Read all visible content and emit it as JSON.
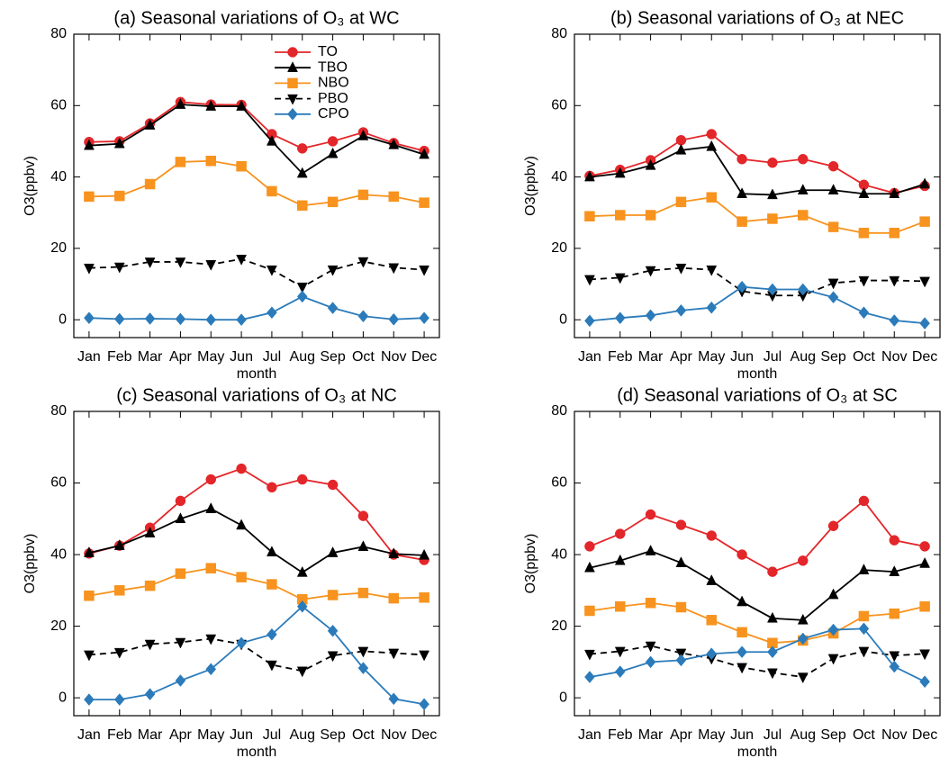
{
  "chart_data": [
    {
      "type": "line",
      "title": "(a) Seasonal variations of O₃ at WC",
      "x_label": "month",
      "y_label": "O3(ppbv)",
      "categories": [
        "Jan",
        "Feb",
        "Mar",
        "Apr",
        "May",
        "Jun",
        "Jul",
        "Aug",
        "Sep",
        "Oct",
        "Nov",
        "Dec"
      ],
      "ylim": [
        -5,
        80
      ],
      "yticks": [
        0,
        20,
        40,
        60,
        80
      ],
      "legend": "upper center",
      "series": [
        {
          "name": "TO",
          "color": "#e3262a",
          "marker": "circle",
          "dash": false,
          "values": [
            49.8,
            50,
            55,
            61,
            60.3,
            60.2,
            52,
            48,
            50,
            52.5,
            49.5,
            47.3
          ]
        },
        {
          "name": "TBO",
          "color": "#000000",
          "marker": "triangle-up",
          "dash": false,
          "values": [
            48.8,
            49.3,
            54.5,
            60.3,
            59.8,
            59.8,
            50,
            41,
            46.5,
            51.5,
            49,
            46.3
          ]
        },
        {
          "name": "NBO",
          "color": "#f7931e",
          "marker": "square",
          "dash": false,
          "values": [
            34.5,
            34.7,
            38,
            44.2,
            44.5,
            43,
            36,
            32,
            33,
            35,
            34.5,
            32.8
          ]
        },
        {
          "name": "PBO",
          "color": "#000000",
          "marker": "triangle-down",
          "dash": true,
          "values": [
            14.5,
            14.8,
            16.2,
            16.2,
            15.5,
            17,
            14,
            9.2,
            14,
            16.3,
            14.6,
            14
          ]
        },
        {
          "name": "CPO",
          "color": "#2b7bba",
          "marker": "diamond",
          "dash": false,
          "values": [
            0.5,
            0.2,
            0.3,
            0.2,
            0,
            0,
            2,
            6.5,
            3.3,
            1,
            0.1,
            0.5
          ]
        }
      ]
    },
    {
      "type": "line",
      "title": "(b) Seasonal variations of O₃ at NEC",
      "x_label": "month",
      "y_label": "O3(ppbv)",
      "categories": [
        "Jan",
        "Feb",
        "Mar",
        "Apr",
        "May",
        "Jun",
        "Jul",
        "Aug",
        "Sep",
        "Oct",
        "Nov",
        "Dec"
      ],
      "ylim": [
        -5,
        80
      ],
      "yticks": [
        0,
        20,
        40,
        60,
        80
      ],
      "series": [
        {
          "color": "#e3262a",
          "marker": "circle",
          "dash": false,
          "values": [
            40.3,
            42,
            44.7,
            50.3,
            52,
            45,
            44,
            45,
            43,
            37.8,
            35.5,
            37.5
          ]
        },
        {
          "color": "#000000",
          "marker": "triangle-up",
          "dash": false,
          "values": [
            40,
            41,
            43.2,
            47.5,
            48.5,
            35.3,
            35,
            36.3,
            36.3,
            35.3,
            35.3,
            38
          ]
        },
        {
          "color": "#f7931e",
          "marker": "square",
          "dash": false,
          "values": [
            29,
            29.3,
            29.3,
            33,
            34.3,
            27.5,
            28.3,
            29.3,
            26,
            24.3,
            24.3,
            27.5
          ]
        },
        {
          "color": "#000000",
          "marker": "triangle-down",
          "dash": true,
          "values": [
            11.3,
            11.8,
            13.8,
            14.5,
            14,
            8,
            6.8,
            6.8,
            10.3,
            11,
            11,
            10.8
          ]
        },
        {
          "color": "#2b7bba",
          "marker": "diamond",
          "dash": false,
          "values": [
            -0.3,
            0.5,
            1.2,
            2.6,
            3.4,
            9.2,
            8.5,
            8.5,
            6.3,
            2,
            -0.2,
            -1
          ]
        }
      ]
    },
    {
      "type": "line",
      "title": "(c) Seasonal variations of O₃ at NC",
      "x_label": "month",
      "y_label": "O3(ppbv)",
      "categories": [
        "Jan",
        "Feb",
        "Mar",
        "Apr",
        "May",
        "Jun",
        "Jul",
        "Aug",
        "Sep",
        "Oct",
        "Nov",
        "Dec"
      ],
      "ylim": [
        -5,
        80
      ],
      "yticks": [
        0,
        20,
        40,
        60,
        80
      ],
      "series": [
        {
          "color": "#e3262a",
          "marker": "circle",
          "dash": false,
          "values": [
            40.3,
            42.5,
            47.5,
            55,
            61,
            64,
            58.8,
            61,
            59.5,
            50.8,
            40,
            38.5
          ]
        },
        {
          "color": "#000000",
          "marker": "triangle-up",
          "dash": false,
          "values": [
            40.5,
            42.5,
            46,
            50,
            52.8,
            48.2,
            40.7,
            35,
            40.5,
            42.2,
            40.2,
            39.8
          ]
        },
        {
          "color": "#f7931e",
          "marker": "square",
          "dash": false,
          "values": [
            28.5,
            30,
            31.3,
            34.7,
            36.2,
            33.7,
            31.7,
            27.5,
            28.7,
            29.3,
            27.8,
            28
          ]
        },
        {
          "color": "#000000",
          "marker": "triangle-down",
          "dash": true,
          "values": [
            12,
            12.7,
            15,
            15.5,
            16.5,
            15,
            9.2,
            7.5,
            11.8,
            13,
            12.5,
            12
          ]
        },
        {
          "color": "#2b7bba",
          "marker": "diamond",
          "dash": false,
          "values": [
            -0.5,
            -0.5,
            1,
            4.8,
            8,
            15.3,
            17.7,
            25.5,
            18.7,
            8.3,
            -0.3,
            -1.8
          ]
        }
      ]
    },
    {
      "type": "line",
      "title": "(d) Seasonal variations of O₃ at SC",
      "x_label": "month",
      "y_label": "O3(ppbv)",
      "categories": [
        "Jan",
        "Feb",
        "Mar",
        "Apr",
        "May",
        "Jun",
        "Jul",
        "Aug",
        "Sep",
        "Oct",
        "Nov",
        "Dec"
      ],
      "ylim": [
        -5,
        80
      ],
      "yticks": [
        0,
        20,
        40,
        60,
        80
      ],
      "series": [
        {
          "color": "#e3262a",
          "marker": "circle",
          "dash": false,
          "values": [
            42.3,
            45.8,
            51.2,
            48.3,
            45.3,
            40,
            35.2,
            38.3,
            48,
            55,
            44,
            42.3
          ]
        },
        {
          "color": "#000000",
          "marker": "triangle-up",
          "dash": false,
          "values": [
            36.3,
            38.3,
            41,
            37.7,
            32.7,
            26.8,
            22.2,
            21.7,
            28.8,
            35.7,
            35.2,
            37.5
          ]
        },
        {
          "color": "#f7931e",
          "marker": "square",
          "dash": false,
          "values": [
            24.3,
            25.5,
            26.5,
            25.3,
            21.7,
            18.3,
            15.3,
            16,
            18,
            22.8,
            23.5,
            25.5
          ]
        },
        {
          "color": "#000000",
          "marker": "triangle-down",
          "dash": true,
          "values": [
            12.2,
            13,
            14.5,
            12.5,
            11,
            8.5,
            7,
            5.8,
            11,
            13,
            11.8,
            12.3
          ]
        },
        {
          "color": "#2b7bba",
          "marker": "diamond",
          "dash": false,
          "values": [
            5.8,
            7.3,
            10,
            10.5,
            12.3,
            12.8,
            12.8,
            16.5,
            19,
            19.3,
            8.7,
            4.5
          ]
        }
      ]
    }
  ]
}
